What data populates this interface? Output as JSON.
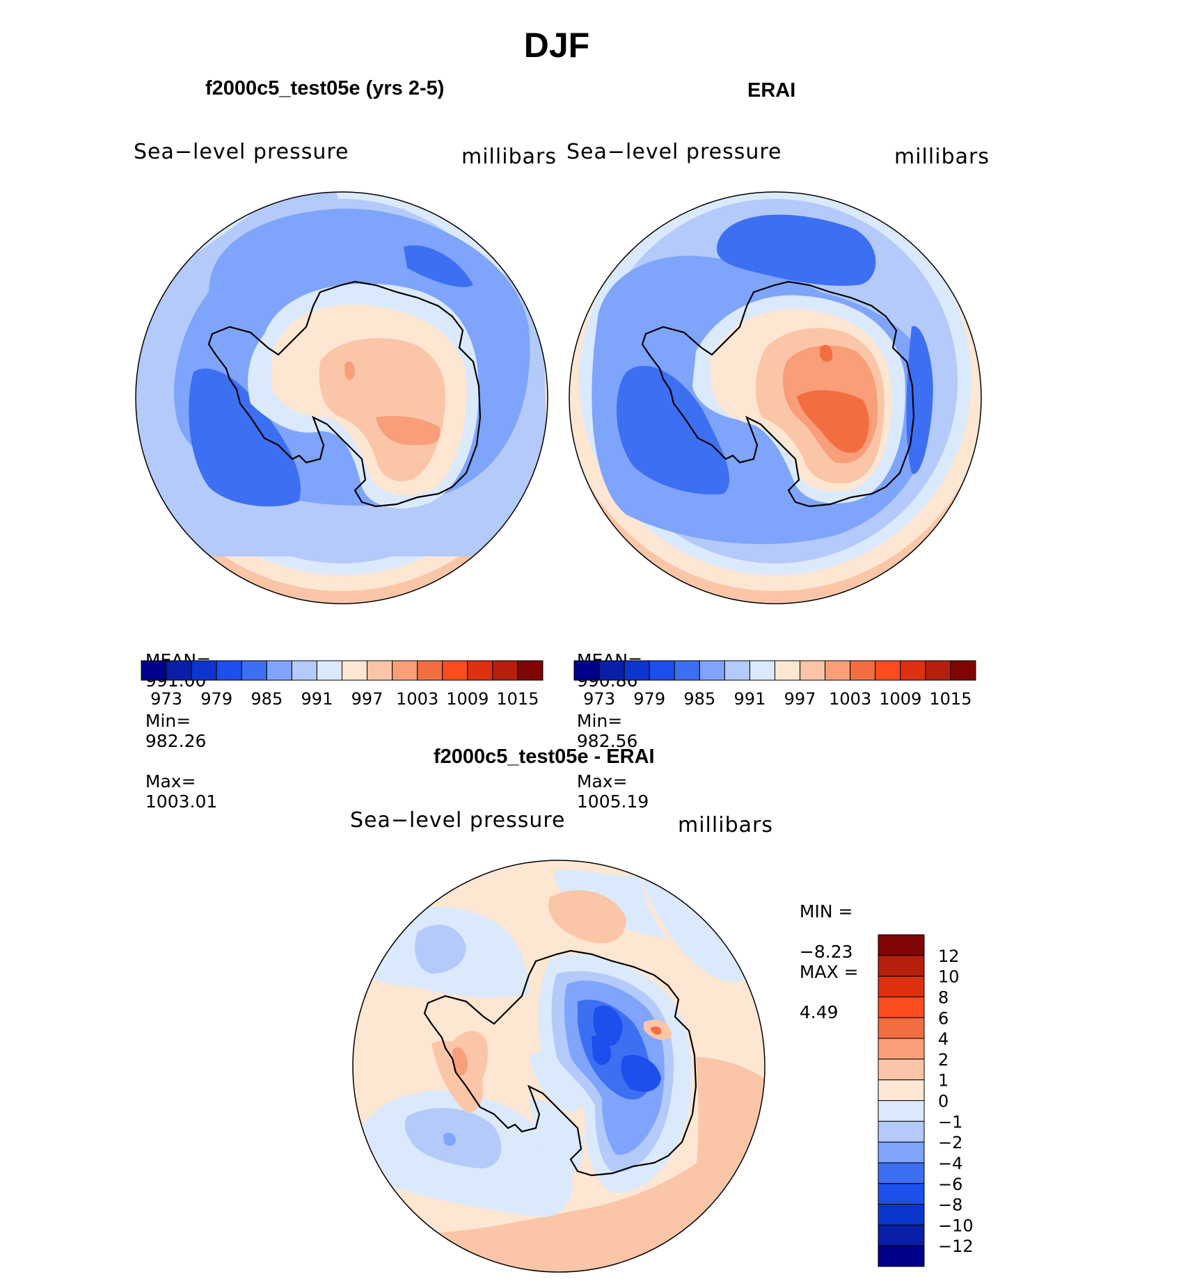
{
  "page_title": "DJF",
  "colors": {
    "coast": "#000000",
    "bg": "#ffffff"
  },
  "chart_data": [
    {
      "type": "heatmap",
      "subtype": "polar-contour-map",
      "title": "f2000c5_test05e (yrs 2-5)",
      "variable": "Sea−level pressure",
      "units": "millibars",
      "stats": {
        "mean_label": "MEAN=",
        "mean": "991.00",
        "min_label": "Min=",
        "min": "982.26",
        "max_label": "Max=",
        "max": "1003.01"
      },
      "levels": [
        973,
        976,
        979,
        982,
        985,
        988,
        991,
        994,
        997,
        1000,
        1003,
        1006,
        1009,
        1012,
        1015
      ],
      "tick_labels": [
        "973",
        "979",
        "985",
        "991",
        "997",
        "1003",
        "1009",
        "1015"
      ],
      "palette": [
        "#00008a",
        "#0a1fa8",
        "#0b35cc",
        "#1c4fec",
        "#3d6ff2",
        "#7ea4fc",
        "#b3cafa",
        "#dbe9fc",
        "#fde6d2",
        "#fbc5a8",
        "#f89e78",
        "#f26e41",
        "#fc4d1c",
        "#dd3110",
        "#b51f0c",
        "#800505"
      ]
    },
    {
      "type": "heatmap",
      "subtype": "polar-contour-map",
      "title": "ERAI",
      "variable": "Sea−level pressure",
      "units": "millibars",
      "stats": {
        "mean_label": "MEAN=",
        "mean": "990.86",
        "min_label": "Min=",
        "min": "982.56",
        "max_label": "Max=",
        "max": "1005.19"
      },
      "levels": [
        973,
        976,
        979,
        982,
        985,
        988,
        991,
        994,
        997,
        1000,
        1003,
        1006,
        1009,
        1012,
        1015
      ],
      "tick_labels": [
        "973",
        "979",
        "985",
        "991",
        "997",
        "1003",
        "1009",
        "1015"
      ],
      "palette": [
        "#00008a",
        "#0a1fa8",
        "#0b35cc",
        "#1c4fec",
        "#3d6ff2",
        "#7ea4fc",
        "#b3cafa",
        "#dbe9fc",
        "#fde6d2",
        "#fbc5a8",
        "#f89e78",
        "#f26e41",
        "#fc4d1c",
        "#dd3110",
        "#b51f0c",
        "#800505"
      ]
    },
    {
      "type": "heatmap",
      "subtype": "polar-contour-map-difference",
      "title": "f2000c5_test05e - ERAI",
      "variable": "Sea−level pressure",
      "units": "millibars",
      "stats": {
        "min_label": "MIN =",
        "min": "−8.23",
        "max_label": "MAX =",
        "max": "4.49"
      },
      "levels": [
        -12,
        -10,
        -8,
        -6,
        -4,
        -2,
        -1,
        0,
        1,
        2,
        4,
        6,
        8,
        10,
        12
      ],
      "tick_labels": [
        "12",
        "10",
        "8",
        "6",
        "4",
        "2",
        "1",
        "0",
        "−1",
        "−2",
        "−4",
        "−6",
        "−8",
        "−10",
        "−12"
      ],
      "palette_top_to_bottom": [
        "#800505",
        "#b51f0c",
        "#dd3110",
        "#fc4d1c",
        "#f26e41",
        "#f89e78",
        "#fbc5a8",
        "#fde6d2",
        "#dbe9fc",
        "#b3cafa",
        "#7ea4fc",
        "#3d6ff2",
        "#1c4fec",
        "#0b35cc",
        "#0a1fa8",
        "#00008a"
      ]
    }
  ]
}
